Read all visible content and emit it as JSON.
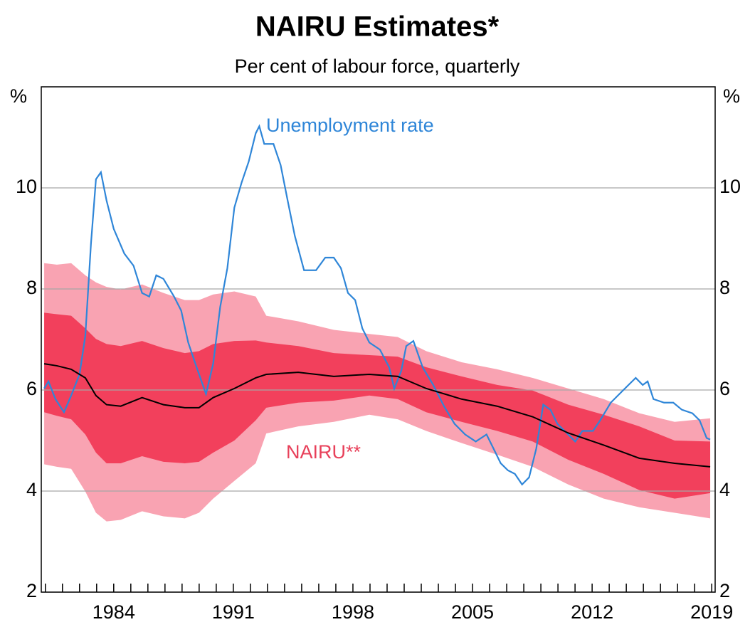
{
  "chart_data": {
    "type": "line",
    "title": "NAIRU Estimates*",
    "subtitle": "Per cent of labour force, quarterly",
    "y_unit": "%",
    "xlim": [
      1979.76,
      2019.2
    ],
    "xticks": [
      1984,
      1991,
      1998,
      2005,
      2012,
      2019
    ],
    "xminorticks": [
      1980,
      1981,
      1982,
      1983,
      1984,
      1985,
      1986,
      1987,
      1988,
      1989,
      1990,
      1991,
      1992,
      1993,
      1994,
      1995,
      1996,
      1997,
      1998,
      1999,
      2000,
      2001,
      2002,
      2003,
      2004,
      2005,
      2006,
      2007,
      2008,
      2009,
      2010,
      2011,
      2012,
      2013,
      2014,
      2015,
      2016,
      2017,
      2018,
      2019
    ],
    "ylim": [
      2,
      12
    ],
    "yticks": [
      2,
      4,
      6,
      8,
      10
    ],
    "grid": true,
    "series": [
      {
        "name": "Unemployment rate",
        "color": "#2f86d8",
        "x": [
          1979.93,
          1980.18,
          1980.59,
          1981.09,
          1981.51,
          1982.0,
          1982.34,
          1982.67,
          1982.96,
          1983.25,
          1983.58,
          1984.0,
          1984.62,
          1985.16,
          1985.66,
          1986.08,
          1986.49,
          1986.91,
          1987.53,
          1987.95,
          1988.36,
          1988.78,
          1989.4,
          1989.82,
          1990.23,
          1990.65,
          1991.06,
          1991.48,
          1991.9,
          1992.31,
          1992.52,
          1992.81,
          1993.35,
          1993.77,
          1994.18,
          1994.6,
          1995.14,
          1995.84,
          1996.38,
          1996.88,
          1997.3,
          1997.71,
          1998.13,
          1998.55,
          1998.96,
          1999.58,
          2000.12,
          2000.42,
          2000.83,
          2001.12,
          2001.54,
          2002.08,
          2002.7,
          2003.33,
          2003.95,
          2004.57,
          2005.19,
          2005.82,
          2006.23,
          2006.65,
          2007.07,
          2007.48,
          2007.9,
          2008.31,
          2008.73,
          2009.14,
          2009.56,
          2009.97,
          2010.6,
          2011.01,
          2011.43,
          2012.05,
          2012.47,
          2013.09,
          2013.71,
          2014.13,
          2014.55,
          2014.96,
          2015.25,
          2015.59,
          2016.21,
          2016.75,
          2017.25,
          2017.87,
          2018.29,
          2018.7,
          2018.91
        ],
        "values": [
          6.03,
          6.17,
          5.82,
          5.56,
          5.89,
          6.31,
          7.08,
          8.9,
          10.17,
          10.31,
          9.75,
          9.19,
          8.7,
          8.46,
          7.92,
          7.85,
          8.27,
          8.2,
          7.85,
          7.57,
          6.94,
          6.52,
          5.92,
          6.52,
          7.64,
          8.41,
          9.61,
          10.1,
          10.52,
          11.08,
          11.22,
          10.87,
          10.87,
          10.45,
          9.75,
          9.05,
          8.37,
          8.37,
          8.62,
          8.62,
          8.41,
          7.92,
          7.78,
          7.22,
          6.94,
          6.8,
          6.45,
          6.03,
          6.38,
          6.87,
          6.97,
          6.45,
          6.1,
          5.68,
          5.33,
          5.12,
          4.98,
          5.12,
          4.84,
          4.55,
          4.41,
          4.34,
          4.13,
          4.27,
          4.84,
          5.71,
          5.61,
          5.33,
          5.12,
          4.98,
          5.19,
          5.19,
          5.4,
          5.75,
          5.96,
          6.1,
          6.24,
          6.1,
          6.17,
          5.82,
          5.75,
          5.75,
          5.61,
          5.54,
          5.4,
          5.05,
          5.02
        ]
      },
      {
        "name": "NAIRU**",
        "color": "#000000",
        "label_color": "#e8405a",
        "x": [
          1979.93,
          1980.67,
          1981.51,
          1982.34,
          1982.96,
          1983.58,
          1984.41,
          1985.66,
          1986.91,
          1988.16,
          1988.99,
          1989.82,
          1991.06,
          1992.31,
          1992.93,
          1994.8,
          1996.88,
          1998.96,
          2000.62,
          2002.29,
          2004.36,
          2006.44,
          2008.52,
          2010.6,
          2012.68,
          2014.76,
          2016.83,
          2018.91
        ],
        "values": [
          6.52,
          6.48,
          6.41,
          6.24,
          5.89,
          5.71,
          5.68,
          5.85,
          5.71,
          5.65,
          5.65,
          5.85,
          6.03,
          6.24,
          6.31,
          6.35,
          6.27,
          6.31,
          6.27,
          6.03,
          5.82,
          5.68,
          5.47,
          5.15,
          4.91,
          4.65,
          4.55,
          4.48
        ],
        "bands": [
          {
            "color": "#f9a3b2",
            "lower": [
              4.53,
              4.48,
              4.44,
              3.99,
              3.57,
              3.4,
              3.43,
              3.6,
              3.5,
              3.46,
              3.57,
              3.85,
              4.2,
              4.55,
              5.14,
              5.28,
              5.37,
              5.51,
              5.42,
              5.19,
              4.95,
              4.72,
              4.48,
              4.13,
              3.85,
              3.68,
              3.57,
              3.46
            ],
            "upper": [
              8.51,
              8.48,
              8.51,
              8.27,
              8.13,
              8.04,
              7.99,
              8.09,
              7.92,
              7.78,
              7.78,
              7.89,
              7.95,
              7.85,
              7.47,
              7.36,
              7.19,
              7.11,
              7.05,
              6.77,
              6.55,
              6.41,
              6.24,
              6.03,
              5.82,
              5.54,
              5.37,
              5.44
            ]
          },
          {
            "color": "#f2405c",
            "lower": [
              5.56,
              5.49,
              5.42,
              5.12,
              4.76,
              4.55,
              4.55,
              4.69,
              4.58,
              4.55,
              4.58,
              4.76,
              5.0,
              5.4,
              5.65,
              5.75,
              5.79,
              5.89,
              5.82,
              5.56,
              5.37,
              5.19,
              4.98,
              4.62,
              4.34,
              4.02,
              3.85,
              3.96
            ],
            "upper": [
              7.53,
              7.5,
              7.47,
              7.22,
              7.01,
              6.91,
              6.87,
              6.97,
              6.83,
              6.73,
              6.77,
              6.91,
              6.97,
              6.98,
              6.94,
              6.87,
              6.73,
              6.69,
              6.66,
              6.45,
              6.27,
              6.1,
              5.99,
              5.71,
              5.51,
              5.28,
              5.0,
              4.98
            ]
          }
        ]
      }
    ]
  }
}
